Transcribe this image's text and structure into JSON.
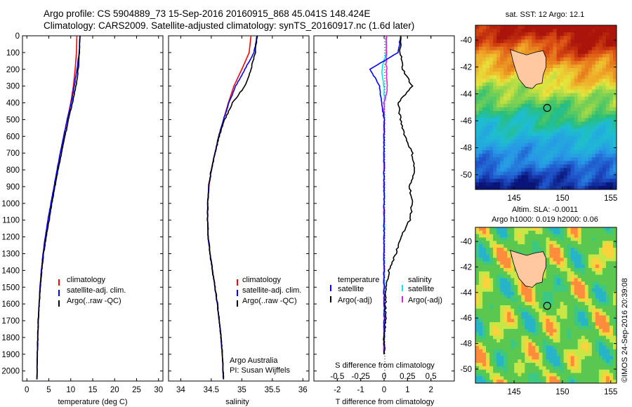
{
  "header": {
    "line1": "Argo profile: CS 5904889_73 15-Sep-2016 20160915_868 45.041S 148.424E",
    "line2": "Climatology: CARS2009. Satellite-adjusted climatology: synTS_20160917.nc (1.6d later)"
  },
  "depth_axis": {
    "ticks": [
      0,
      100,
      200,
      300,
      400,
      500,
      600,
      700,
      800,
      900,
      1000,
      1100,
      1200,
      1300,
      1400,
      1500,
      1600,
      1700,
      1800,
      1900,
      2000
    ],
    "range": [
      0,
      2060
    ]
  },
  "colors": {
    "climatology": "#ff0000",
    "satellite": "#0000ff",
    "argo": "#000000",
    "salinity_satellite": "#00e5ff",
    "salinity_argo": "#e020e0"
  },
  "panels": {
    "temperature": {
      "xlabel": "temperature (deg C)",
      "xlim": [
        -1,
        31
      ],
      "xticks": [
        0,
        5,
        10,
        15,
        20,
        25,
        30
      ],
      "legend": [
        "climatology",
        "satellite-adj. clim.",
        "Argo(..raw -QC)"
      ]
    },
    "salinity": {
      "xlabel": "salinity",
      "xlim": [
        33.8,
        36.1
      ],
      "xticks": [
        "34",
        "34.5",
        "35",
        "35.5",
        "36"
      ],
      "legend": [
        "climatology",
        "satellite-adj. clim.",
        "Argo(..raw -QC)"
      ],
      "credit1": "Argo Australia",
      "credit2": "PI: Susan Wijffels"
    },
    "difference": {
      "xlabel": "T difference from climatology",
      "top_label": "S difference from climatology",
      "xticks_T": [
        "-2",
        "-1",
        "0",
        "1",
        "2"
      ],
      "xticks_S": [
        "-0.5",
        "-0.25",
        "0",
        "0.25",
        "0.5"
      ],
      "legend_left_title": "temperature",
      "legend_left": [
        "satellite",
        "Argo(-adj)"
      ],
      "legend_right_title": "salinity",
      "legend_right": [
        "satellite",
        "Argo(-adj)"
      ]
    }
  },
  "maps": {
    "sst_title": "sat. SST: 12 Argo: 12.1",
    "sla_title1": "Altim. SLA: -0.0011",
    "sla_title2": "Argo h1000: 0.019 h2000: 0.06",
    "lat_ticks": [
      "-40",
      "-42",
      "-44",
      "-46",
      "-48",
      "-50"
    ],
    "lon_ticks": [
      "145",
      "150",
      "155"
    ],
    "argo_position": {
      "lon": 148.424,
      "lat": -45.041
    },
    "side_label": "©IMOS 24-Sep-2016 20:39:08"
  },
  "chart_data": [
    {
      "type": "line",
      "title": "",
      "xlabel": "temperature (deg C)",
      "ylabel": "",
      "xlim": [
        -1,
        31
      ],
      "ylim": [
        2060,
        0
      ],
      "series": [
        {
          "name": "climatology",
          "x": [
            11.4,
            11.3,
            11.0,
            10.6,
            10.0,
            9.2,
            8.4,
            7.6,
            6.9,
            6.2,
            5.5,
            4.8,
            4.2,
            3.7,
            3.3,
            3.0,
            2.8,
            2.6,
            2.5,
            2.4,
            2.3
          ],
          "y": [
            0,
            100,
            200,
            300,
            400,
            500,
            600,
            700,
            800,
            900,
            1000,
            1100,
            1200,
            1300,
            1400,
            1500,
            1600,
            1700,
            1800,
            1900,
            2050
          ]
        },
        {
          "name": "satellite-adj. clim.",
          "x": [
            12.1,
            11.9,
            11.4,
            10.8,
            10.1,
            9.2,
            8.4,
            7.6,
            6.9,
            6.2,
            5.5,
            4.8,
            4.2,
            3.7,
            3.3,
            3.0,
            2.8,
            2.6,
            2.5,
            2.4,
            2.3
          ],
          "y": [
            0,
            100,
            200,
            300,
            400,
            500,
            600,
            700,
            800,
            900,
            1000,
            1100,
            1200,
            1300,
            1400,
            1500,
            1600,
            1700,
            1800,
            1900,
            2050
          ]
        },
        {
          "name": "Argo(..raw -QC)",
          "x": [
            12.1,
            12.0,
            11.7,
            11.2,
            10.4,
            9.5,
            8.7,
            7.9,
            7.1,
            6.4,
            5.7,
            5.1,
            4.4,
            3.8,
            3.4,
            3.1,
            2.8,
            2.6,
            2.5,
            2.4,
            2.3
          ],
          "y": [
            0,
            100,
            200,
            300,
            400,
            500,
            600,
            700,
            800,
            900,
            1000,
            1100,
            1200,
            1300,
            1400,
            1500,
            1600,
            1700,
            1800,
            1900,
            2050
          ]
        }
      ]
    },
    {
      "type": "line",
      "title": "",
      "xlabel": "salinity",
      "ylabel": "",
      "xlim": [
        33.8,
        36.1
      ],
      "ylim": [
        2060,
        0
      ],
      "series": [
        {
          "name": "climatology",
          "x": [
            35.15,
            35.12,
            35.0,
            34.87,
            34.78,
            34.7,
            34.62,
            34.56,
            34.5,
            34.46,
            34.44,
            34.44,
            34.45,
            34.48,
            34.52,
            34.56,
            34.6,
            34.63,
            34.66,
            34.68,
            34.7
          ],
          "y": [
            0,
            100,
            200,
            300,
            400,
            500,
            600,
            700,
            800,
            900,
            1000,
            1100,
            1200,
            1300,
            1400,
            1500,
            1600,
            1700,
            1800,
            1900,
            2050
          ]
        },
        {
          "name": "satellite-adj. clim.",
          "x": [
            35.25,
            35.2,
            35.05,
            34.9,
            34.79,
            34.7,
            34.62,
            34.56,
            34.5,
            34.46,
            34.44,
            34.44,
            34.45,
            34.48,
            34.52,
            34.56,
            34.6,
            34.63,
            34.66,
            34.68,
            34.7
          ],
          "y": [
            0,
            100,
            200,
            300,
            400,
            500,
            600,
            700,
            800,
            900,
            1000,
            1100,
            1200,
            1300,
            1400,
            1500,
            1600,
            1700,
            1800,
            1900,
            2050
          ]
        },
        {
          "name": "Argo(..raw -QC)",
          "x": [
            35.25,
            35.22,
            35.15,
            35.05,
            34.85,
            34.72,
            34.63,
            34.56,
            34.5,
            34.46,
            34.44,
            34.44,
            34.45,
            34.48,
            34.52,
            34.56,
            34.6,
            34.63,
            34.66,
            34.68,
            34.7
          ],
          "y": [
            0,
            100,
            200,
            300,
            400,
            500,
            600,
            700,
            800,
            900,
            1000,
            1100,
            1200,
            1300,
            1400,
            1500,
            1600,
            1700,
            1800,
            1900,
            2050
          ]
        }
      ]
    },
    {
      "type": "line",
      "title": "",
      "xlabel": "T difference from climatology",
      "ylabel": "",
      "xlim": [
        -3,
        3
      ],
      "ylim": [
        2060,
        0
      ],
      "series": [
        {
          "name": "temperature satellite",
          "x": [
            0.7,
            0.6,
            -0.6,
            -0.2,
            -0.1,
            0.0,
            0.0,
            0.0,
            0.0,
            0.0,
            0.0,
            0.0,
            0.0,
            0.0,
            0.0,
            0.0,
            0.0,
            0.0,
            0.0,
            0.0
          ],
          "y": [
            0,
            100,
            200,
            300,
            400,
            500,
            600,
            700,
            800,
            900,
            1000,
            1100,
            1200,
            1300,
            1400,
            1500,
            1600,
            1700,
            1800,
            1900
          ]
        },
        {
          "name": "temperature Argo(-adj)",
          "x": [
            0.7,
            0.7,
            0.8,
            1.2,
            0.6,
            0.7,
            0.9,
            1.2,
            1.3,
            1.1,
            1.2,
            1.1,
            0.7,
            0.5,
            0.2,
            0.1,
            0.05,
            0.05,
            0.0,
            0.0
          ],
          "y": [
            0,
            100,
            200,
            300,
            400,
            500,
            600,
            700,
            800,
            900,
            1000,
            1100,
            1200,
            1300,
            1400,
            1500,
            1600,
            1700,
            1800,
            1900
          ]
        },
        {
          "name": "salinity satellite",
          "x": [
            0.1,
            0.1,
            -0.1,
            0.0,
            0.0,
            0.0,
            0.0,
            0.0,
            0.0,
            0.0,
            0.0,
            0.0,
            0.0,
            0.0,
            0.0,
            0.0,
            0.0,
            0.0,
            0.0,
            0.0
          ],
          "y": [
            0,
            100,
            200,
            300,
            400,
            500,
            600,
            700,
            800,
            900,
            1000,
            1100,
            1200,
            1300,
            1400,
            1500,
            1600,
            1700,
            1800,
            1900
          ]
        },
        {
          "name": "salinity Argo(-adj)",
          "x": [
            0.1,
            0.1,
            0.1,
            0.15,
            0.0,
            0.0,
            0.0,
            0.0,
            0.0,
            0.0,
            0.0,
            0.0,
            0.0,
            0.0,
            0.0,
            0.0,
            0.0,
            0.0,
            0.0,
            0.0
          ],
          "y": [
            0,
            100,
            200,
            300,
            400,
            500,
            600,
            700,
            800,
            900,
            1000,
            1100,
            1200,
            1300,
            1400,
            1500,
            1600,
            1700,
            1800,
            1900
          ]
        }
      ]
    }
  ]
}
